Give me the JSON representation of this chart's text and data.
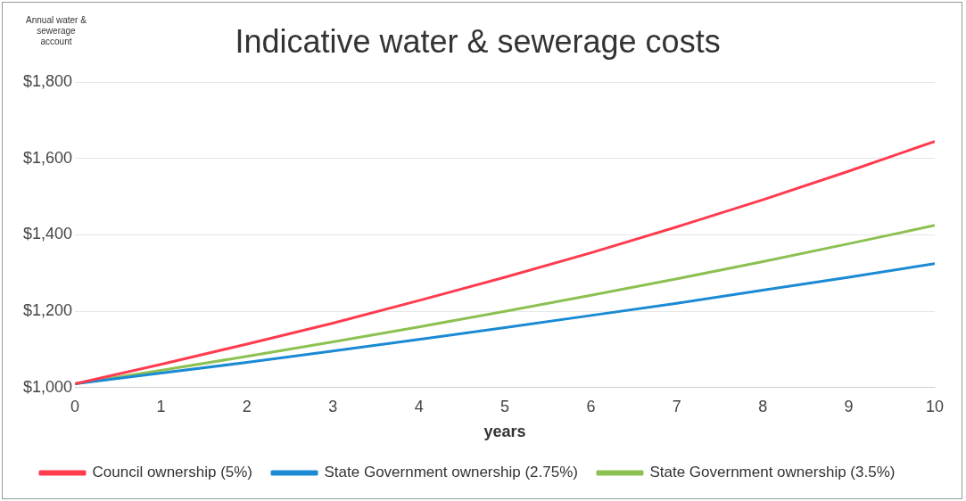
{
  "chart_data": {
    "type": "line",
    "title": "Indicative water & sewerage costs",
    "ylabel": "Annual water & sewerage account",
    "xlabel": "years",
    "x": [
      0,
      1,
      2,
      3,
      4,
      5,
      6,
      7,
      8,
      9,
      10
    ],
    "xlim": [
      0,
      10
    ],
    "xticks": [
      0,
      1,
      2,
      3,
      4,
      5,
      6,
      7,
      8,
      9,
      10
    ],
    "ylim": [
      1000,
      1800
    ],
    "yticks": [
      {
        "value": 1000,
        "label": "$1,000"
      },
      {
        "value": 1200,
        "label": "$1,200"
      },
      {
        "value": 1400,
        "label": "$1,400"
      },
      {
        "value": 1600,
        "label": "$1,600"
      },
      {
        "value": 1800,
        "label": "$1,800"
      }
    ],
    "grid": "y",
    "legend": "bottom",
    "marker": "none",
    "line_style": "solid",
    "series": [
      {
        "name": "Council ownership (5%)",
        "color": "#ff3b4e",
        "values": [
          1010,
          1061,
          1114,
          1169,
          1228,
          1289,
          1353,
          1421,
          1492,
          1567,
          1645
        ]
      },
      {
        "name": "State Government ownership (2.75%)",
        "color": "#1a8ad4",
        "values": [
          1010,
          1038,
          1066,
          1096,
          1126,
          1157,
          1189,
          1221,
          1255,
          1289,
          1325
        ]
      },
      {
        "name": "State Government ownership (3.5%)",
        "color": "#8cc152",
        "values": [
          1010,
          1045,
          1082,
          1120,
          1159,
          1200,
          1242,
          1285,
          1330,
          1377,
          1425
        ]
      }
    ]
  }
}
